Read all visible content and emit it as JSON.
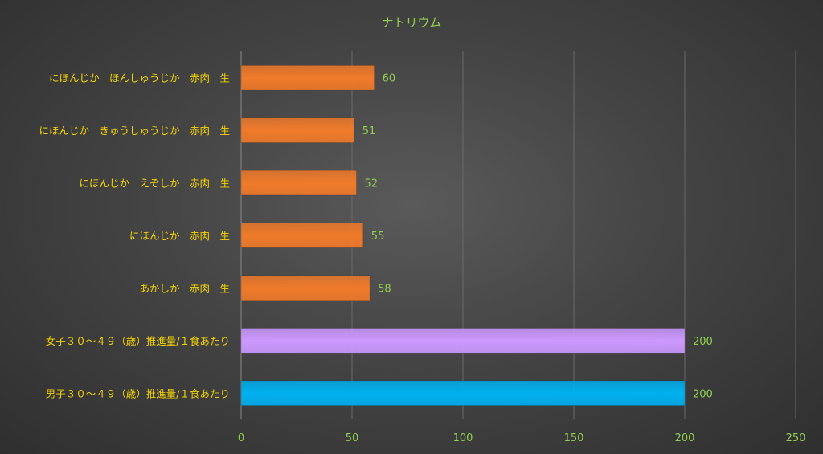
{
  "chart_data": {
    "type": "bar",
    "orientation": "horizontal",
    "title": "ナトリウム",
    "xlabel": "",
    "ylabel": "",
    "xlim": [
      0,
      250
    ],
    "x_ticks": [
      0,
      50,
      100,
      150,
      200,
      250
    ],
    "grid": true,
    "legend": "none",
    "categories": [
      "にほんじか　ほんしゅうじか　赤肉　生",
      "にほんじか　きゅうしゅうじか　赤肉　生",
      "にほんじか　えぞしか　赤肉　生",
      "にほんじか　赤肉　生",
      "あかしか　赤肉　生",
      "女子３０～４９（歳）推進量/１食あたり",
      "男子３０～４９（歳）推進量/１食あたり"
    ],
    "values": [
      60,
      51,
      52,
      55,
      58,
      200,
      200
    ],
    "bar_colors": [
      "#f07a2a",
      "#f07a2a",
      "#f07a2a",
      "#f07a2a",
      "#f07a2a",
      "#cc99ff",
      "#00b0f0"
    ],
    "colors": {
      "title": "#8fd14f",
      "category_text": "#f5d400",
      "value_text": "#8fd14f",
      "grid": "#6a6a6a"
    }
  }
}
